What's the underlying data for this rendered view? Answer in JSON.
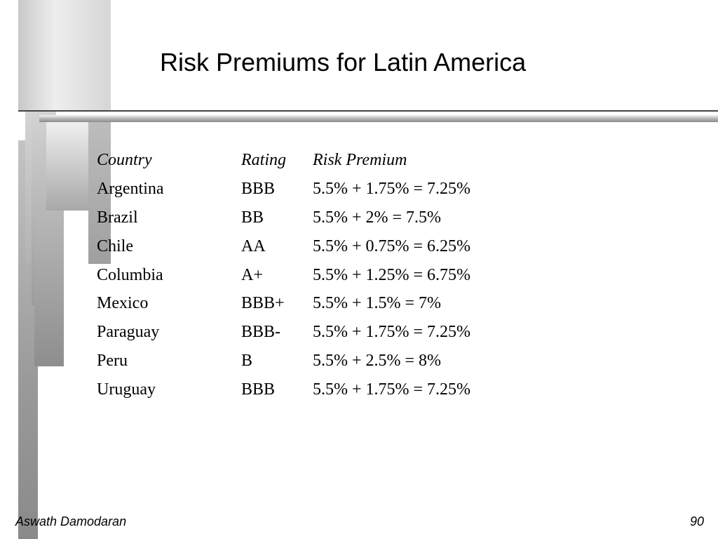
{
  "slide": {
    "title": "Risk Premiums for Latin America",
    "table": {
      "headers": {
        "country": "Country",
        "rating": "Rating",
        "premium": "Risk Premium"
      },
      "rows": [
        {
          "country": "Argentina",
          "rating": "BBB",
          "premium": "5.5% + 1.75% = 7.25%"
        },
        {
          "country": "Brazil",
          "rating": "BB",
          "premium": "5.5% + 2% = 7.5%"
        },
        {
          "country": "Chile",
          "rating": "AA",
          "premium": "5.5% + 0.75% = 6.25%"
        },
        {
          "country": "Columbia",
          "rating": "A+",
          "premium": "5.5% + 1.25% = 6.75%"
        },
        {
          "country": "Mexico",
          "rating": "BBB+",
          "premium": "5.5% + 1.5% = 7%"
        },
        {
          "country": "Paraguay",
          "rating": "BBB-",
          "premium": "5.5% + 1.75% = 7.25%"
        },
        {
          "country": "Peru",
          "rating": "B",
          "premium": "5.5% + 2.5% = 8%"
        },
        {
          "country": "Uruguay",
          "rating": "BBB",
          "premium": "5.5% + 1.75% = 7.25%"
        }
      ]
    },
    "footer": {
      "author": "Aswath Damodaran",
      "page_number": "90"
    }
  }
}
